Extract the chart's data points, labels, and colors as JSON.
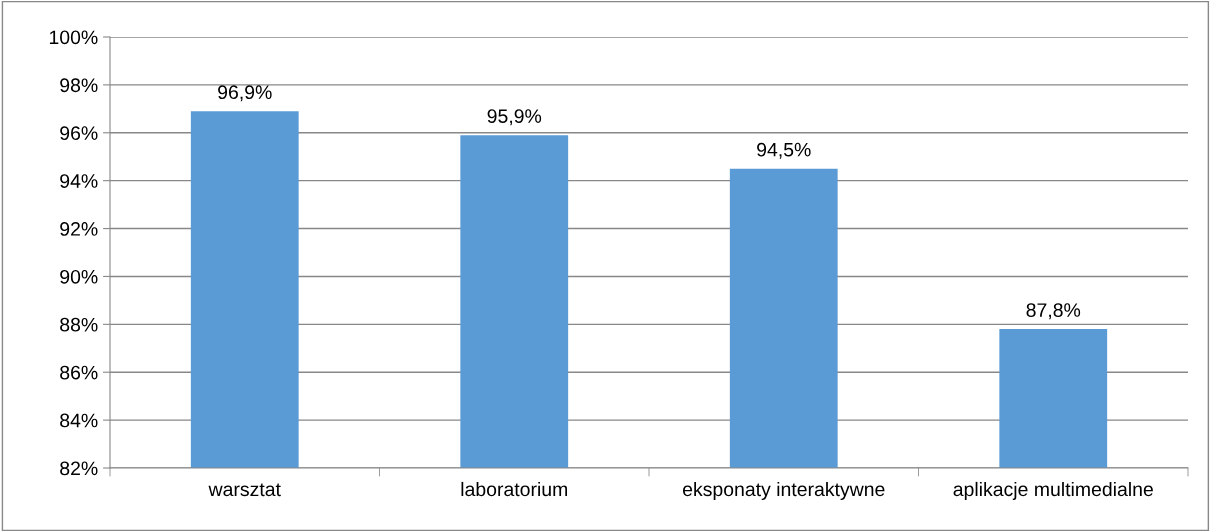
{
  "chart_data": {
    "type": "bar",
    "categories": [
      "warsztat",
      "laboratorium",
      "eksponaty interaktywne",
      "aplikacje multimedialne"
    ],
    "values": [
      96.9,
      95.9,
      94.5,
      87.8
    ],
    "value_labels": [
      "96,9%",
      "95,9%",
      "94,5%",
      "87,8%"
    ],
    "color": "#5b9bd5",
    "ylim": [
      82,
      100
    ],
    "yticks": [
      {
        "value": 82,
        "label": "82%"
      },
      {
        "value": 84,
        "label": "84%"
      },
      {
        "value": 86,
        "label": "86%"
      },
      {
        "value": 88,
        "label": "88%"
      },
      {
        "value": 90,
        "label": "90%"
      },
      {
        "value": 92,
        "label": "92%"
      },
      {
        "value": 94,
        "label": "94%"
      },
      {
        "value": 96,
        "label": "96%"
      },
      {
        "value": 98,
        "label": "98%"
      },
      {
        "value": 100,
        "label": "100%"
      }
    ],
    "grid": "y",
    "legend": false
  }
}
